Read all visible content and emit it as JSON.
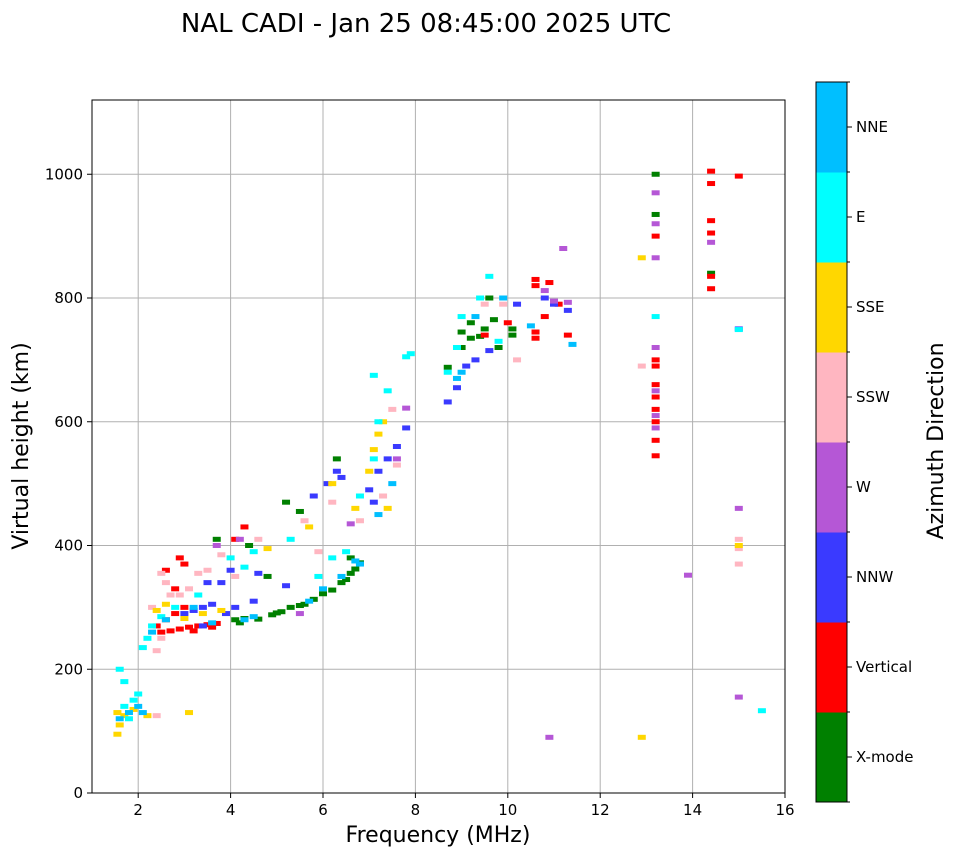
{
  "chart_data": {
    "type": "scatter",
    "title": "NAL CADI - Jan 25 08:45:00 2025 UTC",
    "xlabel": "Frequency (MHz)",
    "ylabel": "Virtual height (km)",
    "xlim": [
      1,
      16
    ],
    "ylim": [
      0,
      1120
    ],
    "xticks": [
      2,
      4,
      6,
      8,
      10,
      12,
      14,
      16
    ],
    "yticks": [
      0,
      200,
      400,
      600,
      800,
      1000
    ],
    "grid": true,
    "colorbar": {
      "title": "Azimuth Direction",
      "position": "right",
      "categories": [
        {
          "label": "X-mode",
          "color": "#008000"
        },
        {
          "label": "Vertical",
          "color": "#ff0000"
        },
        {
          "label": "NNW",
          "color": "#3a3aff"
        },
        {
          "label": "W",
          "color": "#b557d6"
        },
        {
          "label": "SSW",
          "color": "#ffb6c1"
        },
        {
          "label": "SSE",
          "color": "#ffd700"
        },
        {
          "label": "E",
          "color": "#00ffff"
        },
        {
          "label": "NNE",
          "color": "#00bfff"
        }
      ]
    },
    "series": [
      {
        "name": "X-mode",
        "points": [
          [
            4.1,
            280
          ],
          [
            4.3,
            282
          ],
          [
            4.6,
            281
          ],
          [
            4.9,
            288
          ],
          [
            5.1,
            293
          ],
          [
            5.3,
            300
          ],
          [
            5.6,
            305
          ],
          [
            5.8,
            313
          ],
          [
            6.0,
            322
          ],
          [
            6.2,
            328
          ],
          [
            6.5,
            345
          ],
          [
            6.7,
            362
          ],
          [
            6.8,
            372
          ],
          [
            4.2,
            275
          ],
          [
            5.0,
            291
          ],
          [
            5.5,
            303
          ],
          [
            6.4,
            340
          ],
          [
            6.6,
            355
          ],
          [
            9.0,
            720
          ],
          [
            9.2,
            735
          ],
          [
            9.0,
            745
          ],
          [
            9.2,
            760
          ],
          [
            9.5,
            750
          ],
          [
            9.7,
            765
          ],
          [
            10.1,
            740
          ],
          [
            10.1,
            750
          ],
          [
            9.8,
            720
          ],
          [
            9.4,
            738
          ],
          [
            3.7,
            410
          ],
          [
            4.4,
            400
          ],
          [
            5.2,
            470
          ],
          [
            6.3,
            540
          ],
          [
            5.5,
            455
          ],
          [
            4.8,
            350
          ],
          [
            13.2,
            1000
          ],
          [
            13.2,
            935
          ],
          [
            14.4,
            840
          ],
          [
            9.6,
            800
          ],
          [
            8.7,
            688
          ],
          [
            6.6,
            380
          ]
        ]
      },
      {
        "name": "Vertical",
        "points": [
          [
            2.5,
            260
          ],
          [
            2.7,
            262
          ],
          [
            2.9,
            265
          ],
          [
            3.1,
            268
          ],
          [
            3.3,
            270
          ],
          [
            3.5,
            272
          ],
          [
            3.7,
            274
          ],
          [
            2.6,
            280
          ],
          [
            2.8,
            290
          ],
          [
            3.0,
            300
          ],
          [
            2.4,
            270
          ],
          [
            3.2,
            262
          ],
          [
            3.6,
            268
          ],
          [
            2.8,
            330
          ],
          [
            2.6,
            360
          ],
          [
            3.0,
            370
          ],
          [
            2.9,
            380
          ],
          [
            4.1,
            410
          ],
          [
            4.3,
            430
          ],
          [
            10.6,
            830
          ],
          [
            10.6,
            820
          ],
          [
            10.9,
            825
          ],
          [
            11.1,
            790
          ],
          [
            10.6,
            735
          ],
          [
            10.6,
            745
          ],
          [
            13.2,
            700
          ],
          [
            13.2,
            690
          ],
          [
            13.2,
            660
          ],
          [
            13.2,
            640
          ],
          [
            13.2,
            620
          ],
          [
            13.2,
            600
          ],
          [
            13.2,
            570
          ],
          [
            13.2,
            545
          ],
          [
            13.2,
            900
          ],
          [
            14.4,
            985
          ],
          [
            14.4,
            1005
          ],
          [
            14.4,
            925
          ],
          [
            14.4,
            905
          ],
          [
            14.4,
            835
          ],
          [
            14.4,
            815
          ],
          [
            15.0,
            997
          ],
          [
            10.0,
            760
          ],
          [
            9.5,
            740
          ],
          [
            11.3,
            740
          ],
          [
            10.8,
            770
          ]
        ]
      },
      {
        "name": "NNW",
        "points": [
          [
            3.0,
            290
          ],
          [
            3.2,
            295
          ],
          [
            3.4,
            300
          ],
          [
            3.6,
            305
          ],
          [
            3.8,
            340
          ],
          [
            4.0,
            360
          ],
          [
            3.4,
            270
          ],
          [
            3.9,
            290
          ],
          [
            4.1,
            300
          ],
          [
            4.5,
            310
          ],
          [
            5.8,
            480
          ],
          [
            6.1,
            500
          ],
          [
            6.3,
            520
          ],
          [
            7.0,
            490
          ],
          [
            7.2,
            520
          ],
          [
            7.4,
            540
          ],
          [
            7.6,
            560
          ],
          [
            7.8,
            590
          ],
          [
            8.7,
            632
          ],
          [
            8.9,
            655
          ],
          [
            9.1,
            690
          ],
          [
            9.3,
            700
          ],
          [
            9.6,
            715
          ],
          [
            10.2,
            790
          ],
          [
            10.8,
            800
          ],
          [
            11.0,
            790
          ],
          [
            11.3,
            780
          ],
          [
            15.0,
            750
          ],
          [
            6.4,
            510
          ],
          [
            7.1,
            470
          ],
          [
            3.5,
            340
          ],
          [
            4.6,
            355
          ],
          [
            5.2,
            335
          ]
        ]
      },
      {
        "name": "W",
        "points": [
          [
            3.7,
            400
          ],
          [
            4.2,
            410
          ],
          [
            5.5,
            290
          ],
          [
            7.8,
            622
          ],
          [
            7.6,
            540
          ],
          [
            10.8,
            812
          ],
          [
            11.2,
            880
          ],
          [
            11.0,
            795
          ],
          [
            13.2,
            970
          ],
          [
            13.2,
            920
          ],
          [
            13.2,
            865
          ],
          [
            13.2,
            720
          ],
          [
            13.2,
            650
          ],
          [
            13.2,
            610
          ],
          [
            13.2,
            590
          ],
          [
            13.9,
            352
          ],
          [
            15.0,
            460
          ],
          [
            15.0,
            155
          ],
          [
            10.9,
            90
          ],
          [
            14.4,
            890
          ],
          [
            11.3,
            793
          ],
          [
            6.6,
            435
          ]
        ]
      },
      {
        "name": "SSW",
        "points": [
          [
            2.5,
            355
          ],
          [
            2.3,
            300
          ],
          [
            2.6,
            340
          ],
          [
            2.7,
            320
          ],
          [
            2.9,
            320
          ],
          [
            3.1,
            330
          ],
          [
            3.3,
            355
          ],
          [
            3.5,
            360
          ],
          [
            2.4,
            230
          ],
          [
            2.5,
            250
          ],
          [
            4.1,
            350
          ],
          [
            4.6,
            410
          ],
          [
            5.6,
            440
          ],
          [
            6.2,
            470
          ],
          [
            6.8,
            440
          ],
          [
            7.6,
            530
          ],
          [
            7.3,
            480
          ],
          [
            9.5,
            790
          ],
          [
            9.9,
            790
          ],
          [
            10.2,
            700
          ],
          [
            12.9,
            690
          ],
          [
            15.0,
            395
          ],
          [
            15.0,
            410
          ],
          [
            15.0,
            370
          ],
          [
            2.4,
            125
          ],
          [
            7.5,
            620
          ],
          [
            5.9,
            390
          ],
          [
            3.8,
            385
          ]
        ]
      },
      {
        "name": "SSE",
        "points": [
          [
            1.55,
            130
          ],
          [
            1.6,
            110
          ],
          [
            1.7,
            125
          ],
          [
            1.9,
            135
          ],
          [
            2.2,
            125
          ],
          [
            1.55,
            95
          ],
          [
            2.4,
            295
          ],
          [
            2.6,
            305
          ],
          [
            3.0,
            282
          ],
          [
            3.4,
            290
          ],
          [
            3.8,
            295
          ],
          [
            7.1,
            555
          ],
          [
            7.2,
            580
          ],
          [
            7.3,
            600
          ],
          [
            7.0,
            520
          ],
          [
            6.7,
            460
          ],
          [
            6.2,
            500
          ],
          [
            12.9,
            865
          ],
          [
            12.9,
            90
          ],
          [
            15.0,
            400
          ],
          [
            3.1,
            130
          ],
          [
            7.4,
            460
          ],
          [
            5.7,
            430
          ],
          [
            4.8,
            395
          ]
        ]
      },
      {
        "name": "E",
        "points": [
          [
            1.6,
            200
          ],
          [
            1.7,
            180
          ],
          [
            1.7,
            140
          ],
          [
            1.9,
            150
          ],
          [
            2.0,
            160
          ],
          [
            1.8,
            120
          ],
          [
            2.1,
            235
          ],
          [
            2.2,
            250
          ],
          [
            2.3,
            270
          ],
          [
            2.5,
            285
          ],
          [
            2.8,
            300
          ],
          [
            3.3,
            320
          ],
          [
            4.0,
            380
          ],
          [
            4.5,
            390
          ],
          [
            5.3,
            410
          ],
          [
            5.9,
            350
          ],
          [
            6.2,
            380
          ],
          [
            6.5,
            390
          ],
          [
            6.8,
            480
          ],
          [
            7.1,
            540
          ],
          [
            7.2,
            600
          ],
          [
            7.1,
            675
          ],
          [
            7.9,
            710
          ],
          [
            7.8,
            705
          ],
          [
            8.7,
            680
          ],
          [
            8.9,
            720
          ],
          [
            9.0,
            770
          ],
          [
            9.4,
            800
          ],
          [
            9.6,
            835
          ],
          [
            9.8,
            730
          ],
          [
            13.2,
            770
          ],
          [
            15.0,
            749
          ],
          [
            15.5,
            133
          ],
          [
            7.4,
            650
          ],
          [
            4.3,
            365
          ]
        ]
      },
      {
        "name": "NNE",
        "points": [
          [
            1.6,
            120
          ],
          [
            1.8,
            130
          ],
          [
            2.0,
            140
          ],
          [
            2.1,
            130
          ],
          [
            2.3,
            260
          ],
          [
            2.6,
            280
          ],
          [
            3.2,
            300
          ],
          [
            4.3,
            280
          ],
          [
            4.5,
            285
          ],
          [
            5.7,
            310
          ],
          [
            6.4,
            350
          ],
          [
            6.7,
            375
          ],
          [
            6.8,
            370
          ],
          [
            7.2,
            450
          ],
          [
            7.5,
            500
          ],
          [
            8.9,
            670
          ],
          [
            9.0,
            680
          ],
          [
            9.3,
            770
          ],
          [
            9.9,
            800
          ],
          [
            10.5,
            755
          ],
          [
            11.4,
            725
          ],
          [
            3.6,
            275
          ],
          [
            6.0,
            330
          ]
        ]
      }
    ]
  }
}
